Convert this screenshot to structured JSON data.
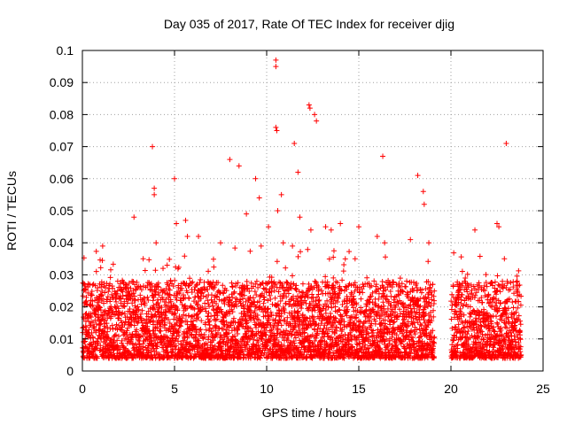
{
  "chart_data": {
    "type": "scatter",
    "title": "Day 035 of 2017, Rate Of TEC Index for receiver djig",
    "xlabel": "GPS time / hours",
    "ylabel": "ROTI / TECUs",
    "xlim": [
      0,
      25
    ],
    "ylim": [
      0,
      0.1
    ],
    "xticks": [
      0,
      5,
      10,
      15,
      20,
      25
    ],
    "yticks": [
      0,
      0.01,
      0.02,
      0.03,
      0.04,
      0.05,
      0.06,
      0.07,
      0.08,
      0.09,
      0.1
    ],
    "xtick_labels": [
      "0",
      "5",
      "10",
      "15",
      "20",
      "25"
    ],
    "ytick_labels": [
      "0",
      "0.01",
      "0.02",
      "0.03",
      "0.04",
      "0.05",
      "0.06",
      "0.07",
      "0.08",
      "0.09",
      "0.1"
    ],
    "grid": true,
    "marker": "+",
    "series_color": "#ff0000",
    "density_note": "Dense band of points between 0.005 and 0.03 across 0-19 h and 20-23.8 h, with a gap near 19-20 h",
    "x": [
      0.4,
      1.1,
      2.8,
      3.3,
      3.8,
      3.9,
      3.9,
      4.0,
      4.6,
      5.0,
      5.1,
      5.6,
      5.7,
      6.3,
      7.5,
      8.0,
      8.5,
      8.9,
      9.4,
      9.6,
      9.7,
      10.1,
      10.5,
      10.5,
      10.55,
      10.5,
      10.6,
      10.8,
      10.9,
      11.4,
      11.5,
      11.7,
      11.8,
      12.3,
      12.35,
      12.4,
      12.6,
      12.7,
      13.2,
      13.5,
      14.0,
      14.8,
      15.0,
      16.0,
      16.3,
      16.4,
      17.8,
      18.2,
      18.5,
      18.55,
      18.8,
      21.3,
      22.5,
      22.6,
      22.9,
      23.0,
      23.6
    ],
    "y": [
      0.027,
      0.039,
      0.048,
      0.035,
      0.07,
      0.057,
      0.055,
      0.04,
      0.033,
      0.06,
      0.046,
      0.047,
      0.042,
      0.042,
      0.04,
      0.066,
      0.064,
      0.049,
      0.06,
      0.054,
      0.039,
      0.045,
      0.097,
      0.095,
      0.075,
      0.076,
      0.05,
      0.055,
      0.04,
      0.039,
      0.071,
      0.062,
      0.048,
      0.083,
      0.082,
      0.044,
      0.08,
      0.078,
      0.045,
      0.044,
      0.046,
      0.035,
      0.045,
      0.042,
      0.067,
      0.04,
      0.041,
      0.061,
      0.056,
      0.052,
      0.04,
      0.044,
      0.046,
      0.045,
      0.035,
      0.071,
      0.028
    ]
  }
}
